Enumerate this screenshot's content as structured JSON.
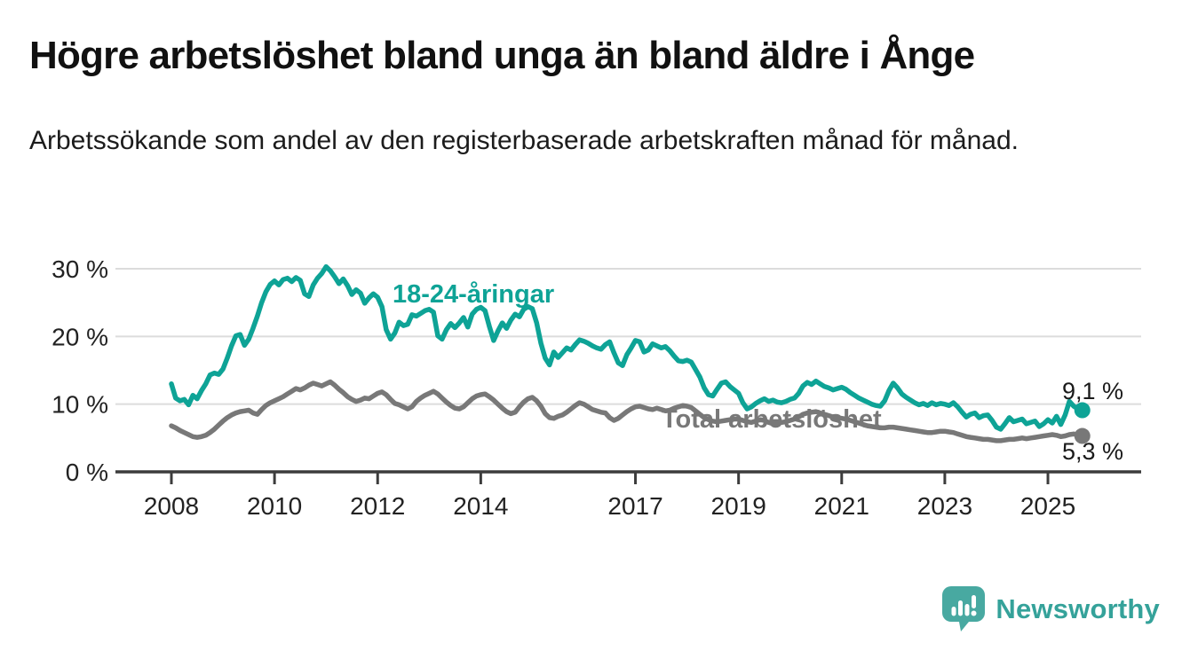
{
  "header": {
    "title": "Högre arbetslöshet bland unga än bland äldre i Ånge",
    "subtitle": "Arbetssökande som andel av den registerbaserade arbetskraften månad för månad."
  },
  "footer": {
    "brand": "Newsworthy",
    "logo_icon": "speech-bubble-bar-chart-icon"
  },
  "colors": {
    "young_line": "#0ea396",
    "total_line": "#787878",
    "grid": "#dcdcdc",
    "axis": "#3c3c3c",
    "tick_text": "#222222",
    "value_text": "#1a1a1a",
    "brand_teal": "#48a9a1",
    "brand_text": "#35a29a"
  },
  "chart_data": {
    "type": "line",
    "unit": "%",
    "x_start": {
      "year": 2008,
      "month": 1
    },
    "x_months_interval": 1,
    "x_tick_years": [
      2008,
      2010,
      2012,
      2014,
      2017,
      2019,
      2021,
      2023,
      2025
    ],
    "y_ticks": [
      0,
      10,
      20,
      30
    ],
    "y_tick_suffix": " %",
    "ylim": [
      0,
      32
    ],
    "grid": true,
    "legend_position": "inline-labels",
    "series": [
      {
        "name": "18-24-åringar",
        "color": "#0ea396",
        "end_label": "9,1 %",
        "end_value": 9.1,
        "values": [
          13.0,
          10.9,
          10.5,
          10.7,
          9.9,
          11.3,
          10.8,
          12.0,
          13.0,
          14.3,
          14.6,
          14.4,
          15.2,
          16.8,
          18.6,
          20.1,
          20.3,
          18.7,
          19.6,
          21.2,
          23.0,
          25.0,
          26.6,
          27.7,
          28.2,
          27.6,
          28.4,
          28.6,
          28.1,
          28.7,
          28.3,
          26.3,
          25.9,
          27.6,
          28.6,
          29.3,
          30.3,
          29.7,
          28.8,
          27.8,
          28.5,
          27.5,
          26.2,
          26.9,
          26.4,
          24.9,
          25.7,
          26.3,
          25.8,
          24.4,
          21.0,
          19.6,
          20.5,
          22.1,
          21.6,
          21.8,
          23.2,
          23.0,
          23.4,
          23.8,
          24.0,
          23.6,
          20.1,
          19.6,
          21.0,
          21.9,
          21.3,
          22.0,
          22.8,
          21.4,
          23.3,
          24.0,
          24.3,
          23.8,
          21.5,
          19.4,
          20.8,
          22.0,
          21.2,
          22.4,
          23.3,
          22.9,
          24.0,
          24.4,
          24.1,
          22.0,
          19.0,
          16.8,
          15.8,
          17.7,
          16.9,
          17.6,
          18.3,
          18.0,
          18.8,
          19.5,
          19.3,
          19.0,
          18.6,
          18.3,
          18.1,
          18.8,
          19.2,
          17.6,
          16.1,
          15.7,
          17.3,
          18.3,
          19.4,
          19.2,
          17.7,
          18.0,
          18.9,
          18.6,
          18.3,
          18.5,
          17.9,
          17.1,
          16.4,
          16.3,
          16.5,
          16.2,
          15.1,
          14.0,
          12.4,
          11.4,
          11.2,
          12.2,
          13.1,
          13.3,
          12.6,
          12.1,
          11.6,
          10.2,
          9.3,
          9.6,
          10.1,
          10.5,
          10.8,
          10.4,
          10.6,
          10.3,
          10.2,
          10.4,
          10.7,
          10.9,
          11.6,
          12.7,
          13.2,
          12.9,
          13.4,
          13.0,
          12.6,
          12.4,
          12.1,
          12.3,
          12.5,
          12.2,
          11.7,
          11.3,
          10.9,
          10.6,
          10.3,
          10.0,
          9.8,
          9.7,
          10.5,
          12.0,
          13.1,
          12.4,
          11.5,
          11.0,
          10.6,
          10.2,
          9.9,
          10.1,
          9.8,
          10.2,
          9.9,
          10.1,
          10.0,
          9.8,
          10.2,
          9.6,
          8.8,
          8.1,
          8.5,
          8.7,
          8.0,
          8.3,
          8.4,
          7.6,
          6.6,
          6.3,
          7.1,
          8.0,
          7.4,
          7.6,
          7.8,
          7.1,
          7.3,
          7.5,
          6.7,
          7.1,
          7.7,
          7.2,
          8.2,
          7.0,
          8.4,
          10.4,
          9.7,
          9.3,
          9.1
        ]
      },
      {
        "name": "Total arbetslöshet",
        "color": "#787878",
        "end_label": "5,3 %",
        "end_value": 5.3,
        "values": [
          6.8,
          6.5,
          6.1,
          5.8,
          5.5,
          5.2,
          5.1,
          5.2,
          5.4,
          5.8,
          6.3,
          6.9,
          7.5,
          8.0,
          8.4,
          8.7,
          8.9,
          9.0,
          9.1,
          8.7,
          8.5,
          9.2,
          9.8,
          10.2,
          10.5,
          10.8,
          11.1,
          11.5,
          11.9,
          12.3,
          12.1,
          12.4,
          12.8,
          13.1,
          12.9,
          12.7,
          13.0,
          13.3,
          12.8,
          12.2,
          11.7,
          11.1,
          10.7,
          10.4,
          10.6,
          10.9,
          10.8,
          11.2,
          11.6,
          11.8,
          11.4,
          10.7,
          10.1,
          9.9,
          9.6,
          9.3,
          9.6,
          10.4,
          10.9,
          11.3,
          11.6,
          11.9,
          11.5,
          10.9,
          10.3,
          9.8,
          9.4,
          9.3,
          9.6,
          10.2,
          10.8,
          11.2,
          11.4,
          11.5,
          11.1,
          10.6,
          10.0,
          9.4,
          8.9,
          8.6,
          8.8,
          9.6,
          10.3,
          10.8,
          11.0,
          10.5,
          9.7,
          8.6,
          8.0,
          7.9,
          8.2,
          8.4,
          8.8,
          9.3,
          9.8,
          10.2,
          10.0,
          9.6,
          9.2,
          9.0,
          8.8,
          8.7,
          8.0,
          7.6,
          7.9,
          8.4,
          8.9,
          9.3,
          9.6,
          9.7,
          9.5,
          9.3,
          9.2,
          9.4,
          9.2,
          9.0,
          9.1,
          9.4,
          9.6,
          9.8,
          9.7,
          9.5,
          9.0,
          8.5,
          8.0,
          7.7,
          7.5,
          7.4,
          7.5,
          7.6,
          7.7,
          7.8,
          7.8,
          7.6,
          7.4,
          7.3,
          7.5,
          7.7,
          7.6,
          7.3,
          7.1,
          7.2,
          7.3,
          7.4,
          7.6,
          7.8,
          8.1,
          8.5,
          8.7,
          8.8,
          8.9,
          8.7,
          8.5,
          8.3,
          8.1,
          8.0,
          7.9,
          7.8,
          7.6,
          7.4,
          7.2,
          7.0,
          6.8,
          6.7,
          6.6,
          6.5,
          6.5,
          6.6,
          6.6,
          6.5,
          6.4,
          6.3,
          6.2,
          6.1,
          6.0,
          5.9,
          5.8,
          5.8,
          5.9,
          6.0,
          6.0,
          5.9,
          5.8,
          5.6,
          5.4,
          5.2,
          5.1,
          5.0,
          4.9,
          4.8,
          4.8,
          4.7,
          4.6,
          4.6,
          4.7,
          4.8,
          4.8,
          4.9,
          5.0,
          4.9,
          5.0,
          5.1,
          5.2,
          5.3,
          5.4,
          5.5,
          5.4,
          5.2,
          5.3,
          5.5,
          5.6,
          5.4,
          5.3
        ]
      }
    ]
  }
}
